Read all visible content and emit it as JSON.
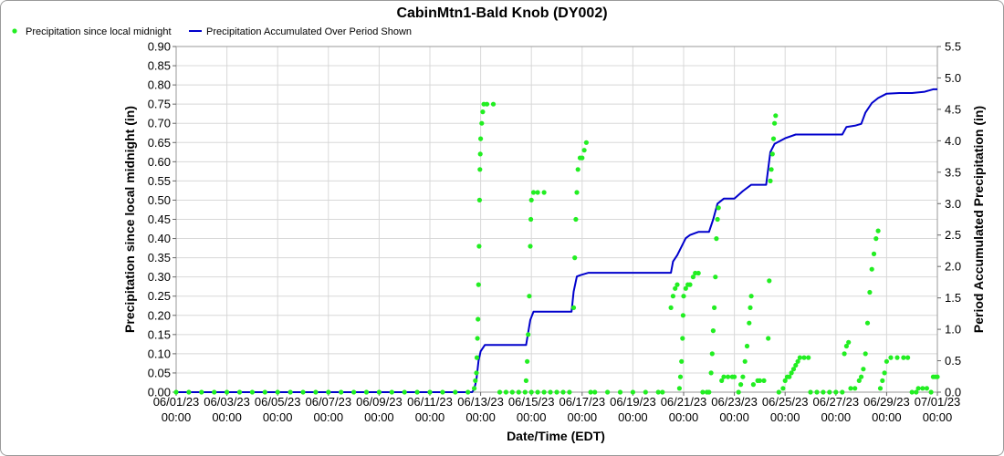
{
  "chart_data": {
    "type": "line",
    "title": "CabinMtn1-Bald Knob (DY002)",
    "xlabel": "Date/Time (EDT)",
    "ylabel_left": "Precipitation since local midnight (in)",
    "ylabel_right": "Period Accumulated Precipitation (in)",
    "legend_position": "top-left",
    "grid": true,
    "x_axis": {
      "min": "06/01/23 00:00",
      "max": "07/01/23 00:00",
      "ticks": [
        {
          "date": "06/01/23",
          "time": "00:00"
        },
        {
          "date": "06/03/23",
          "time": "00:00"
        },
        {
          "date": "06/05/23",
          "time": "00:00"
        },
        {
          "date": "06/07/23",
          "time": "00:00"
        },
        {
          "date": "06/09/23",
          "time": "00:00"
        },
        {
          "date": "06/11/23",
          "time": "00:00"
        },
        {
          "date": "06/13/23",
          "time": "00:00"
        },
        {
          "date": "06/15/23",
          "time": "00:00"
        },
        {
          "date": "06/17/23",
          "time": "00:00"
        },
        {
          "date": "06/19/23",
          "time": "00:00"
        },
        {
          "date": "06/21/23",
          "time": "00:00"
        },
        {
          "date": "06/23/23",
          "time": "00:00"
        },
        {
          "date": "06/25/23",
          "time": "00:00"
        },
        {
          "date": "06/27/23",
          "time": "00:00"
        },
        {
          "date": "06/29/23",
          "time": "00:00"
        },
        {
          "date": "07/01/23",
          "time": "00:00"
        }
      ]
    },
    "y_left": {
      "min": 0,
      "max": 0.9,
      "tick_labels": [
        "0.00",
        "0.05",
        "0.10",
        "0.15",
        "0.20",
        "0.25",
        "0.30",
        "0.35",
        "0.40",
        "0.45",
        "0.50",
        "0.55",
        "0.60",
        "0.65",
        "0.70",
        "0.75",
        "0.80",
        "0.85",
        "0.90"
      ]
    },
    "y_right": {
      "min": 0,
      "max": 5.5,
      "tick_labels": [
        "0.0",
        "0.5",
        "1.0",
        "1.5",
        "2.0",
        "2.5",
        "3.0",
        "3.5",
        "4.0",
        "4.5",
        "5.0",
        "5.5"
      ]
    },
    "series": [
      {
        "name": "Precipitation since local midnight",
        "type": "scatter",
        "axis": "left",
        "color": "#22ee22",
        "points": [
          [
            "06/01/23 00:00",
            0
          ],
          [
            "06/01/23 12:00",
            0
          ],
          [
            "06/02/23 00:00",
            0
          ],
          [
            "06/02/23 12:00",
            0
          ],
          [
            "06/03/23 00:00",
            0
          ],
          [
            "06/03/23 12:00",
            0
          ],
          [
            "06/04/23 00:00",
            0
          ],
          [
            "06/04/23 12:00",
            0
          ],
          [
            "06/05/23 00:00",
            0
          ],
          [
            "06/05/23 12:00",
            0
          ],
          [
            "06/06/23 00:00",
            0
          ],
          [
            "06/06/23 12:00",
            0
          ],
          [
            "06/07/23 00:00",
            0
          ],
          [
            "06/07/23 12:00",
            0
          ],
          [
            "06/08/23 00:00",
            0
          ],
          [
            "06/08/23 12:00",
            0
          ],
          [
            "06/09/23 00:00",
            0
          ],
          [
            "06/09/23 12:00",
            0
          ],
          [
            "06/10/23 00:00",
            0
          ],
          [
            "06/10/23 12:00",
            0
          ],
          [
            "06/11/23 00:00",
            0
          ],
          [
            "06/11/23 12:00",
            0
          ],
          [
            "06/12/23 00:00",
            0
          ],
          [
            "06/12/23 12:00",
            0
          ],
          [
            "06/12/23 18:00",
            0.01
          ],
          [
            "06/12/23 19:00",
            0.03
          ],
          [
            "06/12/23 20:00",
            0.05
          ],
          [
            "06/12/23 20:30",
            0.09
          ],
          [
            "06/12/23 21:00",
            0.14
          ],
          [
            "06/12/23 21:30",
            0.19
          ],
          [
            "06/12/23 22:00",
            0.28
          ],
          [
            "06/12/23 22:30",
            0.38
          ],
          [
            "06/12/23 23:00",
            0.5
          ],
          [
            "06/12/23 23:20",
            0.58
          ],
          [
            "06/12/23 23:40",
            0.62
          ],
          [
            "06/13/23 00:00",
            0.66
          ],
          [
            "06/13/23 01:00",
            0.7
          ],
          [
            "06/13/23 02:00",
            0.73
          ],
          [
            "06/13/23 03:00",
            0.75
          ],
          [
            "06/13/23 06:00",
            0.75
          ],
          [
            "06/13/23 12:00",
            0.75
          ],
          [
            "06/13/23 18:00",
            0
          ],
          [
            "06/14/23 00:00",
            0
          ],
          [
            "06/14/23 06:00",
            0
          ],
          [
            "06/14/23 12:00",
            0
          ],
          [
            "06/14/23 18:00",
            0
          ],
          [
            "06/15/23 00:00",
            0
          ],
          [
            "06/15/23 06:00",
            0
          ],
          [
            "06/15/23 12:00",
            0
          ],
          [
            "06/14/23 19:00",
            0.03
          ],
          [
            "06/14/23 20:00",
            0.08
          ],
          [
            "06/14/23 21:00",
            0.15
          ],
          [
            "06/14/23 22:00",
            0.25
          ],
          [
            "06/14/23 23:00",
            0.38
          ],
          [
            "06/14/23 23:30",
            0.45
          ],
          [
            "06/15/23 00:00",
            0.5
          ],
          [
            "06/15/23 02:00",
            0.52
          ],
          [
            "06/15/23 06:00",
            0.52
          ],
          [
            "06/15/23 12:00",
            0.52
          ],
          [
            "06/15/23 18:00",
            0
          ],
          [
            "06/16/23 00:00",
            0
          ],
          [
            "06/16/23 06:00",
            0
          ],
          [
            "06/16/23 12:00",
            0
          ],
          [
            "06/16/23 16:00",
            0.22
          ],
          [
            "06/16/23 17:00",
            0.35
          ],
          [
            "06/16/23 18:00",
            0.45
          ],
          [
            "06/16/23 19:00",
            0.52
          ],
          [
            "06/16/23 20:00",
            0.58
          ],
          [
            "06/16/23 22:00",
            0.61
          ],
          [
            "06/17/23 00:00",
            0.61
          ],
          [
            "06/17/23 02:00",
            0.63
          ],
          [
            "06/17/23 04:00",
            0.65
          ],
          [
            "06/17/23 08:00",
            0
          ],
          [
            "06/17/23 12:00",
            0
          ],
          [
            "06/18/23 00:00",
            0
          ],
          [
            "06/18/23 12:00",
            0
          ],
          [
            "06/19/23 00:00",
            0
          ],
          [
            "06/19/23 12:00",
            0
          ],
          [
            "06/20/23 00:00",
            0
          ],
          [
            "06/20/23 04:00",
            0
          ],
          [
            "06/20/23 12:00",
            0.22
          ],
          [
            "06/20/23 14:00",
            0.25
          ],
          [
            "06/20/23 16:00",
            0.27
          ],
          [
            "06/20/23 18:00",
            0.28
          ],
          [
            "06/20/23 20:00",
            0.01
          ],
          [
            "06/20/23 21:00",
            0.04
          ],
          [
            "06/20/23 22:00",
            0.08
          ],
          [
            "06/20/23 23:00",
            0.14
          ],
          [
            "06/20/23 23:30",
            0.2
          ],
          [
            "06/21/23 00:00",
            0.25
          ],
          [
            "06/21/23 02:00",
            0.27
          ],
          [
            "06/21/23 04:00",
            0.28
          ],
          [
            "06/21/23 06:00",
            0.28
          ],
          [
            "06/21/23 09:00",
            0.3
          ],
          [
            "06/21/23 11:00",
            0.31
          ],
          [
            "06/21/23 14:00",
            0.31
          ],
          [
            "06/21/23 18:00",
            0
          ],
          [
            "06/21/23 22:00",
            0
          ],
          [
            "06/22/23 00:00",
            0
          ],
          [
            "06/22/23 02:00",
            0.05
          ],
          [
            "06/22/23 03:00",
            0.1
          ],
          [
            "06/22/23 04:00",
            0.16
          ],
          [
            "06/22/23 05:00",
            0.22
          ],
          [
            "06/22/23 06:00",
            0.3
          ],
          [
            "06/22/23 07:00",
            0.4
          ],
          [
            "06/22/23 08:00",
            0.45
          ],
          [
            "06/22/23 09:00",
            0.48
          ],
          [
            "06/22/23 12:00",
            0.03
          ],
          [
            "06/22/23 14:00",
            0.04
          ],
          [
            "06/22/23 18:00",
            0.04
          ],
          [
            "06/22/23 22:00",
            0.04
          ],
          [
            "06/23/23 00:00",
            0.04
          ],
          [
            "06/23/23 04:00",
            0
          ],
          [
            "06/23/23 06:00",
            0.02
          ],
          [
            "06/23/23 08:00",
            0.04
          ],
          [
            "06/23/23 10:00",
            0.08
          ],
          [
            "06/23/23 12:00",
            0.12
          ],
          [
            "06/23/23 14:00",
            0.18
          ],
          [
            "06/23/23 15:00",
            0.22
          ],
          [
            "06/23/23 16:00",
            0.25
          ],
          [
            "06/23/23 18:00",
            0.02
          ],
          [
            "06/23/23 22:00",
            0.03
          ],
          [
            "06/24/23 00:00",
            0.03
          ],
          [
            "06/24/23 04:00",
            0.03
          ],
          [
            "06/24/23 08:00",
            0.14
          ],
          [
            "06/24/23 09:00",
            0.29
          ],
          [
            "06/24/23 10:00",
            0.55
          ],
          [
            "06/24/23 11:00",
            0.58
          ],
          [
            "06/24/23 12:00",
            0.62
          ],
          [
            "06/24/23 13:00",
            0.66
          ],
          [
            "06/24/23 14:00",
            0.7
          ],
          [
            "06/24/23 15:00",
            0.72
          ],
          [
            "06/24/23 18:00",
            0
          ],
          [
            "06/24/23 22:00",
            0.01
          ],
          [
            "06/25/23 00:00",
            0.03
          ],
          [
            "06/25/23 02:00",
            0.04
          ],
          [
            "06/25/23 04:00",
            0.04
          ],
          [
            "06/25/23 06:00",
            0.05
          ],
          [
            "06/25/23 08:00",
            0.06
          ],
          [
            "06/25/23 10:00",
            0.07
          ],
          [
            "06/25/23 12:00",
            0.08
          ],
          [
            "06/25/23 14:00",
            0.09
          ],
          [
            "06/25/23 18:00",
            0.09
          ],
          [
            "06/25/23 22:00",
            0.09
          ],
          [
            "06/26/23 00:00",
            0
          ],
          [
            "06/26/23 06:00",
            0
          ],
          [
            "06/26/23 12:00",
            0
          ],
          [
            "06/26/23 18:00",
            0
          ],
          [
            "06/27/23 00:00",
            0
          ],
          [
            "06/27/23 06:00",
            0
          ],
          [
            "06/27/23 08:00",
            0.1
          ],
          [
            "06/27/23 10:00",
            0.12
          ],
          [
            "06/27/23 12:00",
            0.13
          ],
          [
            "06/27/23 14:00",
            0.01
          ],
          [
            "06/27/23 18:00",
            0.01
          ],
          [
            "06/27/23 22:00",
            0.03
          ],
          [
            "06/28/23 00:00",
            0.04
          ],
          [
            "06/28/23 02:00",
            0.06
          ],
          [
            "06/28/23 04:00",
            0.1
          ],
          [
            "06/28/23 06:00",
            0.18
          ],
          [
            "06/28/23 08:00",
            0.26
          ],
          [
            "06/28/23 10:00",
            0.32
          ],
          [
            "06/28/23 12:00",
            0.36
          ],
          [
            "06/28/23 14:00",
            0.4
          ],
          [
            "06/28/23 16:00",
            0.42
          ],
          [
            "06/28/23 18:00",
            0.01
          ],
          [
            "06/28/23 20:00",
            0.03
          ],
          [
            "06/28/23 22:00",
            0.05
          ],
          [
            "06/29/23 00:00",
            0.08
          ],
          [
            "06/29/23 04:00",
            0.09
          ],
          [
            "06/29/23 10:00",
            0.09
          ],
          [
            "06/29/23 16:00",
            0.09
          ],
          [
            "06/29/23 20:00",
            0.09
          ],
          [
            "06/30/23 00:00",
            0
          ],
          [
            "06/30/23 04:00",
            0
          ],
          [
            "06/30/23 06:00",
            0.01
          ],
          [
            "06/30/23 10:00",
            0.01
          ],
          [
            "06/30/23 14:00",
            0.01
          ],
          [
            "06/30/23 18:00",
            0
          ],
          [
            "06/30/23 20:00",
            0.04
          ],
          [
            "06/30/23 22:00",
            0.04
          ],
          [
            "07/01/23 00:00",
            0.04
          ]
        ]
      },
      {
        "name": "Precipitation Accumulated Over Period Shown",
        "type": "line",
        "axis": "right",
        "color": "#0000cc",
        "points": [
          [
            "06/01/23 00:00",
            0
          ],
          [
            "06/12/23 16:00",
            0
          ],
          [
            "06/12/23 18:00",
            0.05
          ],
          [
            "06/12/23 20:00",
            0.2
          ],
          [
            "06/12/23 22:00",
            0.5
          ],
          [
            "06/13/23 00:00",
            0.65
          ],
          [
            "06/13/23 04:00",
            0.75
          ],
          [
            "06/14/23 19:00",
            0.75
          ],
          [
            "06/14/23 21:00",
            0.95
          ],
          [
            "06/14/23 23:00",
            1.15
          ],
          [
            "06/15/23 02:00",
            1.28
          ],
          [
            "06/16/23 14:00",
            1.28
          ],
          [
            "06/16/23 16:00",
            1.6
          ],
          [
            "06/16/23 19:00",
            1.84
          ],
          [
            "06/16/23 22:00",
            1.86
          ],
          [
            "06/17/23 06:00",
            1.9
          ],
          [
            "06/20/23 12:00",
            1.9
          ],
          [
            "06/20/23 14:00",
            2.08
          ],
          [
            "06/20/23 18:00",
            2.18
          ],
          [
            "06/21/23 02:00",
            2.45
          ],
          [
            "06/21/23 06:00",
            2.5
          ],
          [
            "06/21/23 14:00",
            2.55
          ],
          [
            "06/22/23 00:00",
            2.55
          ],
          [
            "06/22/23 04:00",
            2.75
          ],
          [
            "06/22/23 08:00",
            3.0
          ],
          [
            "06/22/23 14:00",
            3.08
          ],
          [
            "06/23/23 00:00",
            3.08
          ],
          [
            "06/23/23 08:00",
            3.2
          ],
          [
            "06/23/23 16:00",
            3.3
          ],
          [
            "06/24/23 06:00",
            3.3
          ],
          [
            "06/24/23 10:00",
            3.82
          ],
          [
            "06/24/23 14:00",
            3.95
          ],
          [
            "06/25/23 00:00",
            4.04
          ],
          [
            "06/25/23 10:00",
            4.1
          ],
          [
            "06/26/23 00:00",
            4.1
          ],
          [
            "06/27/23 06:00",
            4.1
          ],
          [
            "06/27/23 10:00",
            4.22
          ],
          [
            "06/27/23 18:00",
            4.24
          ],
          [
            "06/28/23 00:00",
            4.27
          ],
          [
            "06/28/23 04:00",
            4.45
          ],
          [
            "06/28/23 10:00",
            4.6
          ],
          [
            "06/28/23 16:00",
            4.68
          ],
          [
            "06/29/23 00:00",
            4.75
          ],
          [
            "06/29/23 12:00",
            4.76
          ],
          [
            "06/30/23 00:00",
            4.76
          ],
          [
            "06/30/23 12:00",
            4.78
          ],
          [
            "06/30/23 20:00",
            4.82
          ],
          [
            "07/01/23 00:00",
            4.82
          ]
        ]
      }
    ]
  }
}
